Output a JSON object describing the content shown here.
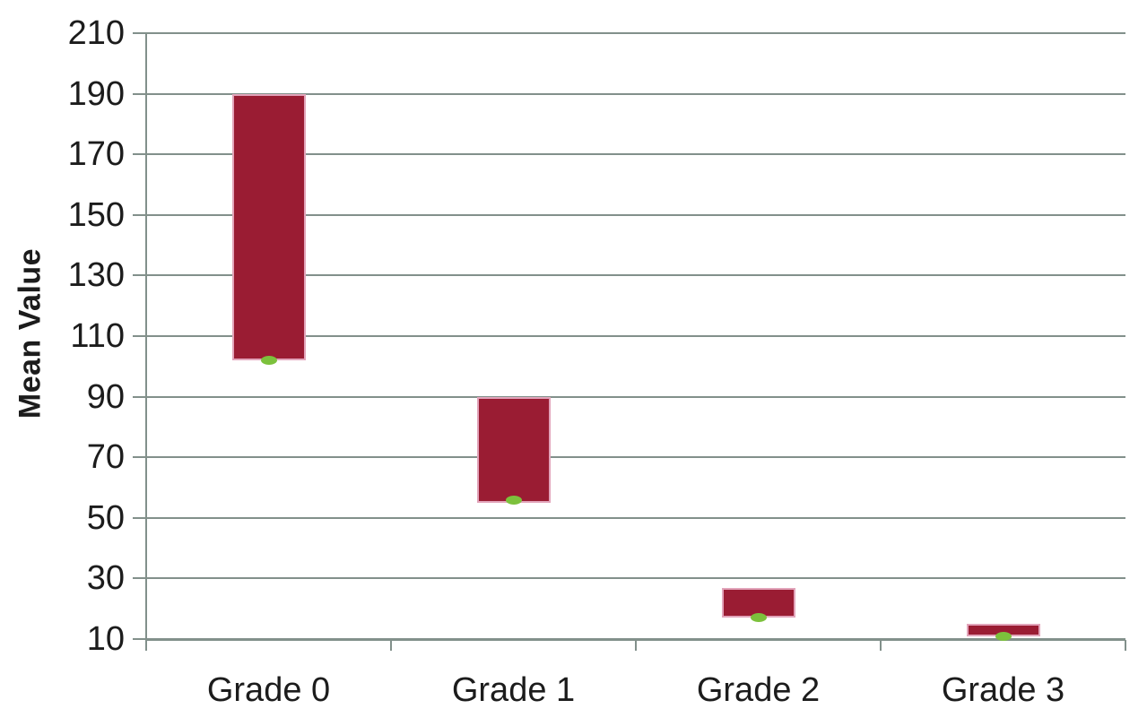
{
  "chart_data": {
    "type": "bar",
    "subtype": "floating-range-bars-with-mean-markers",
    "title": "",
    "xlabel": "",
    "ylabel": "Mean Value",
    "categories": [
      "Grade 0",
      "Grade 1",
      "Grade 2",
      "Grade 3"
    ],
    "series": [
      {
        "name": "value-range",
        "low": [
          102,
          55,
          17,
          11
        ],
        "high": [
          190,
          90,
          27,
          15
        ]
      }
    ],
    "markers": {
      "name": "mean-marker",
      "values": [
        102,
        56,
        17,
        11
      ],
      "color": "#7cc13c"
    },
    "ylim": [
      10,
      210
    ],
    "y_ticks": [
      210,
      190,
      170,
      150,
      130,
      110,
      90,
      70,
      50,
      30,
      10
    ],
    "grid": true,
    "legend": "none",
    "bar_color": "#9a1c33",
    "bar_border_color": "#e2a4ba",
    "axis_color": "#82908b",
    "text_color": "#1c1c1c",
    "background_color": "#ffffff"
  }
}
